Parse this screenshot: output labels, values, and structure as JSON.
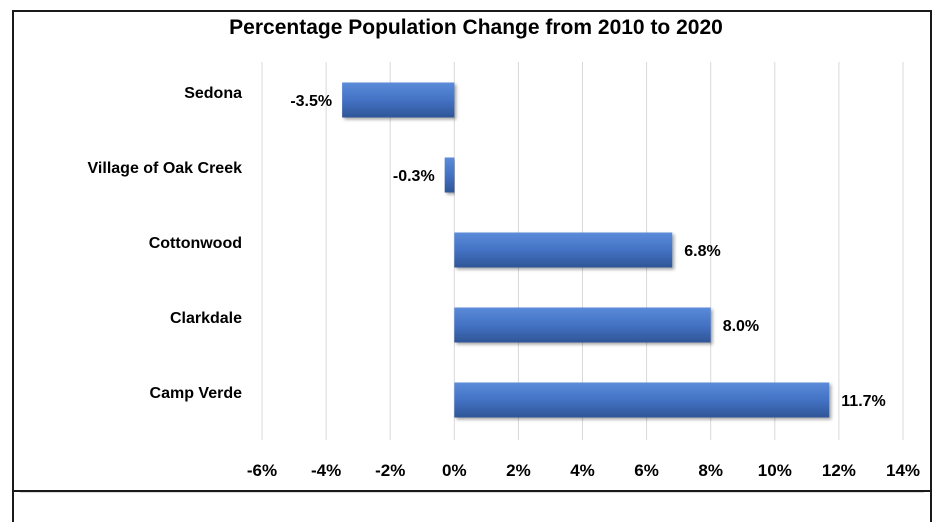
{
  "chart_data": {
    "type": "bar",
    "orientation": "horizontal",
    "title": "Percentage Population Change from 2010 to 2020",
    "xlabel": "",
    "ylabel": "",
    "categories": [
      "Sedona",
      "Village of Oak Creek",
      "Cottonwood",
      "Clarkdale",
      "Camp Verde"
    ],
    "values": [
      -3.5,
      -0.3,
      6.8,
      8.0,
      11.7
    ],
    "data_labels": [
      "-3.5%",
      "-0.3%",
      "6.8%",
      "8.0%",
      "11.7%"
    ],
    "xlim": [
      -6,
      14
    ],
    "xticks": [
      -6,
      -4,
      -2,
      0,
      2,
      4,
      6,
      8,
      10,
      12,
      14
    ],
    "xtick_labels": [
      "-6%",
      "-4%",
      "-2%",
      "0%",
      "2%",
      "4%",
      "6%",
      "8%",
      "10%",
      "12%",
      "14%"
    ],
    "grid": "vertical",
    "legend": "none",
    "colors": {
      "bar": "#4472c4",
      "bar_light": "#5b8bd9",
      "bar_dark": "#2f5597",
      "grid": "#d9d9d9"
    }
  }
}
